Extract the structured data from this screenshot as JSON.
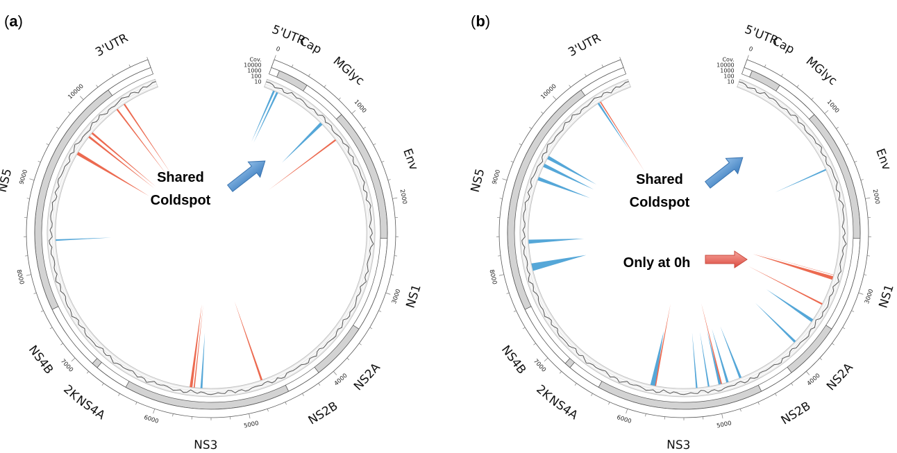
{
  "figure": {
    "genome_length": 10800,
    "panels": [
      {
        "letter": "a",
        "genes": [
          {
            "label": "5'UTR",
            "start": 0,
            "end": 95,
            "shaded": false
          },
          {
            "label": "Cap",
            "start": 95,
            "end": 437,
            "shaded": true
          },
          {
            "label": "MGlyc",
            "start": 437,
            "end": 935,
            "shaded": false
          },
          {
            "label": "Env",
            "start": 935,
            "end": 2420,
            "shaded": true
          },
          {
            "label": "NS1",
            "start": 2420,
            "end": 3476,
            "shaded": false
          },
          {
            "label": "NS2A",
            "start": 3476,
            "end": 4130,
            "shaded": true
          },
          {
            "label": "NS2B",
            "start": 4130,
            "end": 4520,
            "shaded": false
          },
          {
            "label": "NS3",
            "start": 4520,
            "end": 6377,
            "shaded": true
          },
          {
            "label": "NS4A",
            "start": 6377,
            "end": 6758,
            "shaded": false
          },
          {
            "label": "2K",
            "start": 6758,
            "end": 6827,
            "shaded": true
          },
          {
            "label": "NS4B",
            "start": 6827,
            "end": 7571,
            "shaded": false
          },
          {
            "label": "NS5",
            "start": 7571,
            "end": 10271,
            "shaded": true
          },
          {
            "label": "3'UTR",
            "start": 10271,
            "end": 10800,
            "shaded": false
          }
        ],
        "coldspots": [
          {
            "pos": 130,
            "width": 25,
            "color": "blue"
          },
          {
            "pos": 175,
            "width": 25,
            "color": "blue"
          },
          {
            "pos": 850,
            "width": 40,
            "color": "blue"
          },
          {
            "pos": 1120,
            "width": 20,
            "color": "red"
          },
          {
            "pos": 4760,
            "width": 25,
            "color": "red"
          },
          {
            "pos": 5520,
            "width": 25,
            "color": "blue"
          },
          {
            "pos": 5610,
            "width": 15,
            "color": "red"
          },
          {
            "pos": 5650,
            "width": 35,
            "color": "red"
          },
          {
            "pos": 8350,
            "width": 20,
            "color": "blue"
          },
          {
            "pos": 9480,
            "width": 40,
            "color": "red"
          },
          {
            "pos": 9730,
            "width": 25,
            "color": "red"
          },
          {
            "pos": 9790,
            "width": 25,
            "color": "red"
          },
          {
            "pos": 10220,
            "width": 20,
            "color": "red"
          },
          {
            "pos": 10330,
            "width": 20,
            "color": "red"
          }
        ],
        "annotations": [
          {
            "lines": [
              "Shared",
              "Coldspot"
            ],
            "arrow": "blue"
          }
        ]
      },
      {
        "letter": "b",
        "genes": [
          {
            "label": "5'UTR",
            "start": 0,
            "end": 95,
            "shaded": false
          },
          {
            "label": "Cap",
            "start": 95,
            "end": 437,
            "shaded": true
          },
          {
            "label": "MGlyc",
            "start": 437,
            "end": 935,
            "shaded": false
          },
          {
            "label": "Env",
            "start": 935,
            "end": 2420,
            "shaded": true
          },
          {
            "label": "NS1",
            "start": 2420,
            "end": 3476,
            "shaded": false
          },
          {
            "label": "NS2A",
            "start": 3476,
            "end": 4130,
            "shaded": true
          },
          {
            "label": "NS2B",
            "start": 4130,
            "end": 4520,
            "shaded": false
          },
          {
            "label": "NS3",
            "start": 4520,
            "end": 6377,
            "shaded": true
          },
          {
            "label": "NS4A",
            "start": 6377,
            "end": 6758,
            "shaded": false
          },
          {
            "label": "2K",
            "start": 6758,
            "end": 6827,
            "shaded": true
          },
          {
            "label": "NS4B",
            "start": 6827,
            "end": 7571,
            "shaded": false
          },
          {
            "label": "NS5",
            "start": 7571,
            "end": 10271,
            "shaded": true
          },
          {
            "label": "3'UTR",
            "start": 10271,
            "end": 10800,
            "shaded": false
          }
        ],
        "coldspots": [
          {
            "pos": 1550,
            "width": 20,
            "color": "blue"
          },
          {
            "pos": 2890,
            "width": 5,
            "color": "red"
          },
          {
            "pos": 2930,
            "width": 45,
            "color": "red"
          },
          {
            "pos": 3280,
            "width": 20,
            "color": "red"
          },
          {
            "pos": 3520,
            "width": 40,
            "color": "blue"
          },
          {
            "pos": 3860,
            "width": 30,
            "color": "blue"
          },
          {
            "pos": 4680,
            "width": 30,
            "color": "blue"
          },
          {
            "pos": 4850,
            "width": 30,
            "color": "blue"
          },
          {
            "pos": 4930,
            "width": 20,
            "color": "red"
          },
          {
            "pos": 4950,
            "width": 30,
            "color": "blue"
          },
          {
            "pos": 5090,
            "width": 20,
            "color": "blue"
          },
          {
            "pos": 5240,
            "width": 20,
            "color": "blue"
          },
          {
            "pos": 5760,
            "width": 25,
            "color": "red"
          },
          {
            "pos": 5790,
            "width": 60,
            "color": "blue"
          },
          {
            "pos": 8010,
            "width": 95,
            "color": "blue"
          },
          {
            "pos": 8330,
            "width": 50,
            "color": "blue"
          },
          {
            "pos": 9130,
            "width": 45,
            "color": "blue"
          },
          {
            "pos": 9310,
            "width": 45,
            "color": "blue"
          },
          {
            "pos": 9420,
            "width": 45,
            "color": "blue"
          },
          {
            "pos": 10350,
            "width": 25,
            "color": "blue"
          },
          {
            "pos": 10380,
            "width": 15,
            "color": "red"
          }
        ],
        "annotations": [
          {
            "lines": [
              "Shared",
              "Coldspot"
            ],
            "arrow": "blue"
          },
          {
            "lines": [
              "Only at 0h"
            ],
            "arrow": "red"
          }
        ]
      }
    ],
    "position_ticks": [
      0,
      1000,
      2000,
      3000,
      4000,
      5000,
      6000,
      7000,
      8000,
      9000,
      10000
    ],
    "coverage_scale": [
      "Cov.",
      "10000",
      "1000",
      "100",
      "10"
    ],
    "colors": {
      "coldspot_blue": "#55a7d8",
      "coldspot_red": "#ec6a50",
      "gene_shaded": "#d3d3d3",
      "track_bg": "#ececec",
      "arrow_blue": "#5b93c9",
      "arrow_red": "#e8685e"
    }
  }
}
